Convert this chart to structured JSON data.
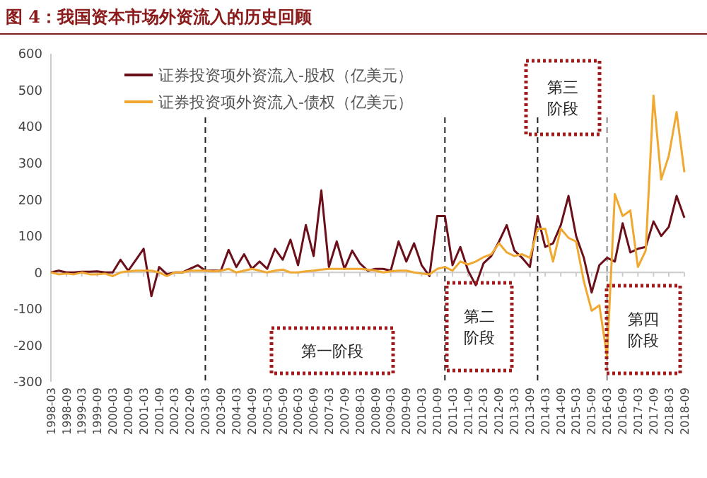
{
  "chart_data": {
    "type": "line",
    "title": "图 4：我国资本市场外资流入的历史回顾",
    "x": [
      "1998-03",
      "1998-06",
      "1998-09",
      "1998-12",
      "1999-03",
      "1999-06",
      "1999-09",
      "1999-12",
      "2000-03",
      "2000-06",
      "2000-09",
      "2000-12",
      "2001-03",
      "2001-06",
      "2001-09",
      "2001-12",
      "2002-03",
      "2002-06",
      "2002-09",
      "2002-12",
      "2003-03",
      "2003-06",
      "2003-09",
      "2003-12",
      "2004-03",
      "2004-06",
      "2004-09",
      "2004-12",
      "2005-03",
      "2005-06",
      "2005-09",
      "2005-12",
      "2006-03",
      "2006-06",
      "2006-09",
      "2006-12",
      "2007-03",
      "2007-06",
      "2007-09",
      "2007-12",
      "2008-03",
      "2008-06",
      "2008-09",
      "2008-12",
      "2009-03",
      "2009-06",
      "2009-09",
      "2009-12",
      "2010-03",
      "2010-06",
      "2010-09",
      "2010-12",
      "2011-03",
      "2011-06",
      "2011-09",
      "2011-12",
      "2012-03",
      "2012-06",
      "2012-09",
      "2012-12",
      "2013-03",
      "2013-06",
      "2013-09",
      "2013-12",
      "2014-03",
      "2014-06",
      "2014-09",
      "2014-12",
      "2015-03",
      "2015-06",
      "2015-09",
      "2015-12",
      "2016-03",
      "2016-06",
      "2016-09",
      "2016-12",
      "2017-03",
      "2017-06",
      "2017-09",
      "2017-12",
      "2018-03",
      "2018-06",
      "2018-09"
    ],
    "series": [
      {
        "name": "证券投资项外资流入-股权（亿美元）",
        "color": "#6b0f1a",
        "values": [
          0,
          5,
          0,
          0,
          2,
          2,
          3,
          0,
          0,
          35,
          5,
          35,
          65,
          -65,
          15,
          -5,
          0,
          0,
          10,
          20,
          5,
          5,
          5,
          62,
          15,
          50,
          10,
          30,
          10,
          65,
          35,
          90,
          20,
          130,
          45,
          225,
          15,
          85,
          10,
          60,
          25,
          5,
          10,
          10,
          5,
          85,
          30,
          80,
          20,
          -10,
          155,
          155,
          20,
          70,
          5,
          -35,
          25,
          45,
          85,
          130,
          60,
          40,
          15,
          155,
          70,
          80,
          130,
          210,
          100,
          40,
          -55,
          20,
          40,
          30,
          135,
          55,
          65,
          70,
          140,
          100,
          125,
          210,
          150
        ]
      },
      {
        "name": "证券投资项外资流入-债权（亿美元）",
        "color": "#f0a830",
        "values": [
          0,
          -5,
          -3,
          -5,
          0,
          -5,
          -5,
          -3,
          -10,
          0,
          3,
          5,
          5,
          5,
          0,
          -10,
          0,
          0,
          5,
          5,
          5,
          3,
          5,
          10,
          0,
          5,
          10,
          5,
          0,
          5,
          8,
          0,
          0,
          3,
          5,
          8,
          10,
          10,
          10,
          10,
          10,
          8,
          5,
          0,
          3,
          5,
          5,
          0,
          -3,
          -5,
          10,
          15,
          5,
          30,
          22,
          30,
          42,
          50,
          80,
          55,
          45,
          50,
          40,
          120,
          120,
          30,
          120,
          95,
          85,
          -25,
          -105,
          -90,
          -230,
          215,
          155,
          170,
          15,
          60,
          485,
          255,
          320,
          440,
          275
        ]
      }
    ],
    "xlim": [
      "1998-03",
      "2018-09"
    ],
    "xticks": [
      "1998-03",
      "1998-09",
      "1999-03",
      "1999-09",
      "2000-03",
      "2000-09",
      "2001-03",
      "2001-09",
      "2002-03",
      "2002-09",
      "2003-03",
      "2003-09",
      "2004-03",
      "2004-09",
      "2005-03",
      "2005-09",
      "2006-03",
      "2006-09",
      "2007-03",
      "2007-09",
      "2008-03",
      "2008-09",
      "2009-03",
      "2009-09",
      "2010-03",
      "2010-09",
      "2011-03",
      "2011-09",
      "2012-03",
      "2012-09",
      "2013-03",
      "2013-09",
      "2014-03",
      "2014-09",
      "2015-03",
      "2015-09",
      "2016-03",
      "2016-09",
      "2017-03",
      "2017-09",
      "2018-03",
      "2018-09"
    ],
    "ylim": [
      -300,
      600
    ],
    "yticks": [
      -300,
      -200,
      -100,
      0,
      100,
      200,
      300,
      400,
      500,
      600
    ],
    "ref_lines": [
      {
        "axis": "x",
        "value": "2003-03",
        "color": "#222222",
        "line_style": "dashed"
      },
      {
        "axis": "x",
        "value": "2010-12",
        "color": "#222222",
        "line_style": "dashed"
      },
      {
        "axis": "x",
        "value": "2013-12",
        "color": "#222222",
        "line_style": "dashed"
      },
      {
        "axis": "x",
        "value": "2016-03",
        "color": "#888888",
        "line_style": "dashed"
      }
    ],
    "annotations": [
      "第一阶段",
      "第二阶段",
      "第三阶段",
      "第四阶段"
    ],
    "legend": "top left",
    "grid": false,
    "marker": "none",
    "line_style": "solid"
  }
}
